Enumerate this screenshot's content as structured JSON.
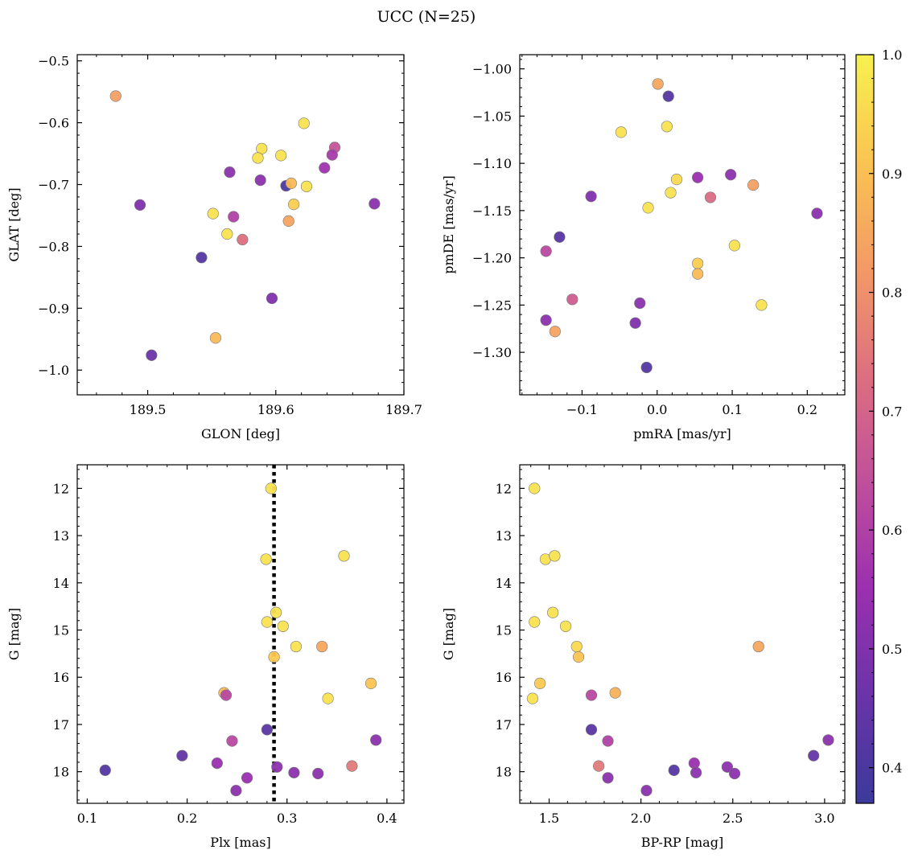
{
  "title": "UCC (N=25)",
  "colormap": {
    "name": "plasma",
    "stops": [
      "#3b3a9a",
      "#6a34a8",
      "#9b2fb0",
      "#c04f9c",
      "#dd6f80",
      "#f39a66",
      "#fbc451",
      "#f7f14f"
    ]
  },
  "colorbar": {
    "range": [
      0.37,
      1.0
    ],
    "ticks": [
      0.4,
      0.5,
      0.6,
      0.7,
      0.8,
      0.9,
      1.0
    ],
    "tick_labels": [
      "0.4",
      "0.5",
      "0.6",
      "0.7",
      "0.8",
      "0.9",
      "1.0"
    ]
  },
  "chart_data": [
    {
      "type": "scatter",
      "xlabel": "GLON [deg]",
      "ylabel": "GLAT [deg]",
      "xlim": [
        189.445,
        189.7
      ],
      "ylim": [
        -1.04,
        -0.49
      ],
      "xticks": [
        189.5,
        189.6,
        189.7
      ],
      "xtick_labels": [
        "189.5",
        "189.6",
        "189.7"
      ],
      "yticks": [
        -1.0,
        -0.9,
        -0.8,
        -0.7,
        -0.6,
        -0.5
      ],
      "ytick_labels": [
        "−1.0",
        "−0.9",
        "−0.8",
        "−0.7",
        "−0.6",
        "−0.5"
      ],
      "points": [
        {
          "x": 189.475,
          "y": -0.557,
          "c": 0.83
        },
        {
          "x": 189.622,
          "y": -0.601,
          "c": 0.97
        },
        {
          "x": 189.646,
          "y": -0.64,
          "c": 0.65
        },
        {
          "x": 189.589,
          "y": -0.642,
          "c": 0.97
        },
        {
          "x": 189.604,
          "y": -0.653,
          "c": 0.97
        },
        {
          "x": 189.644,
          "y": -0.652,
          "c": 0.58
        },
        {
          "x": 189.586,
          "y": -0.657,
          "c": 0.97
        },
        {
          "x": 189.638,
          "y": -0.673,
          "c": 0.56
        },
        {
          "x": 189.564,
          "y": -0.68,
          "c": 0.52
        },
        {
          "x": 189.588,
          "y": -0.693,
          "c": 0.52
        },
        {
          "x": 189.608,
          "y": -0.702,
          "c": 0.4
        },
        {
          "x": 189.612,
          "y": -0.698,
          "c": 0.89
        },
        {
          "x": 189.624,
          "y": -0.703,
          "c": 0.97
        },
        {
          "x": 189.494,
          "y": -0.733,
          "c": 0.5
        },
        {
          "x": 189.677,
          "y": -0.731,
          "c": 0.52
        },
        {
          "x": 189.614,
          "y": -0.732,
          "c": 0.93
        },
        {
          "x": 189.551,
          "y": -0.747,
          "c": 0.97
        },
        {
          "x": 189.567,
          "y": -0.752,
          "c": 0.6
        },
        {
          "x": 189.61,
          "y": -0.759,
          "c": 0.84
        },
        {
          "x": 189.562,
          "y": -0.78,
          "c": 0.97
        },
        {
          "x": 189.574,
          "y": -0.789,
          "c": 0.73
        },
        {
          "x": 189.542,
          "y": -0.818,
          "c": 0.42
        },
        {
          "x": 189.597,
          "y": -0.884,
          "c": 0.5
        },
        {
          "x": 189.553,
          "y": -0.948,
          "c": 0.89
        },
        {
          "x": 189.503,
          "y": -0.976,
          "c": 0.46
        }
      ]
    },
    {
      "type": "scatter",
      "xlabel": "pmRA [mas/yr]",
      "ylabel": "pmDE [mas/yr]",
      "xlim": [
        -0.183,
        0.25
      ],
      "ylim": [
        -1.345,
        -0.985
      ],
      "xticks": [
        -0.1,
        0.0,
        0.1,
        0.2
      ],
      "xtick_labels": [
        "−0.1",
        "0.0",
        "0.1",
        "0.2"
      ],
      "yticks": [
        -1.3,
        -1.25,
        -1.2,
        -1.15,
        -1.1,
        -1.05,
        -1.0
      ],
      "ytick_labels": [
        "−1.30",
        "−1.25",
        "−1.20",
        "−1.15",
        "−1.10",
        "−1.05",
        "−1.00"
      ],
      "points": [
        {
          "x": 0.001,
          "y": -1.016,
          "c": 0.85
        },
        {
          "x": 0.015,
          "y": -1.029,
          "c": 0.42
        },
        {
          "x": -0.048,
          "y": -1.067,
          "c": 0.97
        },
        {
          "x": 0.013,
          "y": -1.061,
          "c": 0.97
        },
        {
          "x": 0.054,
          "y": -1.115,
          "c": 0.55
        },
        {
          "x": 0.098,
          "y": -1.112,
          "c": 0.52
        },
        {
          "x": 0.026,
          "y": -1.117,
          "c": 0.95
        },
        {
          "x": -0.088,
          "y": -1.135,
          "c": 0.5
        },
        {
          "x": 0.071,
          "y": -1.136,
          "c": 0.72
        },
        {
          "x": 0.128,
          "y": -1.123,
          "c": 0.83
        },
        {
          "x": 0.018,
          "y": -1.131,
          "c": 0.97
        },
        {
          "x": -0.012,
          "y": -1.147,
          "c": 0.97
        },
        {
          "x": 0.213,
          "y": -1.153,
          "c": 0.52
        },
        {
          "x": -0.13,
          "y": -1.178,
          "c": 0.43
        },
        {
          "x": 0.103,
          "y": -1.187,
          "c": 0.97
        },
        {
          "x": -0.148,
          "y": -1.193,
          "c": 0.62
        },
        {
          "x": 0.054,
          "y": -1.206,
          "c": 0.93
        },
        {
          "x": 0.054,
          "y": -1.217,
          "c": 0.89
        },
        {
          "x": -0.113,
          "y": -1.244,
          "c": 0.68
        },
        {
          "x": -0.023,
          "y": -1.248,
          "c": 0.52
        },
        {
          "x": 0.139,
          "y": -1.25,
          "c": 0.97
        },
        {
          "x": -0.148,
          "y": -1.266,
          "c": 0.52
        },
        {
          "x": -0.029,
          "y": -1.269,
          "c": 0.5
        },
        {
          "x": -0.136,
          "y": -1.278,
          "c": 0.84
        },
        {
          "x": -0.014,
          "y": -1.316,
          "c": 0.42
        }
      ]
    },
    {
      "type": "scatter",
      "xlabel": "Plx [mas]",
      "ylabel": "G [mag]",
      "xlim": [
        0.09,
        0.417
      ],
      "ylim": [
        18.67,
        11.5
      ],
      "xticks": [
        0.1,
        0.2,
        0.3,
        0.4
      ],
      "xtick_labels": [
        "0.1",
        "0.2",
        "0.3",
        "0.4"
      ],
      "yticks": [
        12,
        13,
        14,
        15,
        16,
        17,
        18
      ],
      "ytick_labels": [
        "12",
        "13",
        "14",
        "15",
        "16",
        "17",
        "18"
      ],
      "vline": {
        "x": 0.287,
        "style": "dotted"
      },
      "points": [
        {
          "x": 0.284,
          "y": 12.0,
          "c": 0.97
        },
        {
          "x": 0.279,
          "y": 13.5,
          "c": 0.97
        },
        {
          "x": 0.357,
          "y": 13.43,
          "c": 0.97
        },
        {
          "x": 0.289,
          "y": 14.63,
          "c": 0.97
        },
        {
          "x": 0.28,
          "y": 14.83,
          "c": 0.97
        },
        {
          "x": 0.296,
          "y": 14.92,
          "c": 0.97
        },
        {
          "x": 0.309,
          "y": 15.35,
          "c": 0.97
        },
        {
          "x": 0.335,
          "y": 15.35,
          "c": 0.85
        },
        {
          "x": 0.287,
          "y": 15.57,
          "c": 0.92
        },
        {
          "x": 0.384,
          "y": 16.13,
          "c": 0.91
        },
        {
          "x": 0.237,
          "y": 16.33,
          "c": 0.89
        },
        {
          "x": 0.239,
          "y": 16.38,
          "c": 0.62
        },
        {
          "x": 0.341,
          "y": 16.45,
          "c": 0.97
        },
        {
          "x": 0.28,
          "y": 17.11,
          "c": 0.43
        },
        {
          "x": 0.389,
          "y": 17.33,
          "c": 0.52
        },
        {
          "x": 0.245,
          "y": 17.35,
          "c": 0.62
        },
        {
          "x": 0.195,
          "y": 17.66,
          "c": 0.45
        },
        {
          "x": 0.23,
          "y": 17.82,
          "c": 0.55
        },
        {
          "x": 0.29,
          "y": 17.9,
          "c": 0.52
        },
        {
          "x": 0.365,
          "y": 17.88,
          "c": 0.75
        },
        {
          "x": 0.118,
          "y": 17.97,
          "c": 0.42
        },
        {
          "x": 0.307,
          "y": 18.02,
          "c": 0.52
        },
        {
          "x": 0.331,
          "y": 18.04,
          "c": 0.52
        },
        {
          "x": 0.26,
          "y": 18.13,
          "c": 0.55
        },
        {
          "x": 0.249,
          "y": 18.4,
          "c": 0.52
        }
      ]
    },
    {
      "type": "scatter",
      "xlabel": "BP-RP [mag]",
      "ylabel": "G [mag]",
      "xlim": [
        1.34,
        3.11
      ],
      "ylim": [
        18.67,
        11.5
      ],
      "xticks": [
        1.5,
        2.0,
        2.5,
        3.0
      ],
      "xtick_labels": [
        "1.5",
        "2.0",
        "2.5",
        "3.0"
      ],
      "yticks": [
        12,
        13,
        14,
        15,
        16,
        17,
        18
      ],
      "ytick_labels": [
        "12",
        "13",
        "14",
        "15",
        "16",
        "17",
        "18"
      ],
      "points": [
        {
          "x": 1.42,
          "y": 12.0,
          "c": 0.97
        },
        {
          "x": 1.48,
          "y": 13.5,
          "c": 0.97
        },
        {
          "x": 1.53,
          "y": 13.43,
          "c": 0.97
        },
        {
          "x": 1.52,
          "y": 14.63,
          "c": 0.97
        },
        {
          "x": 1.42,
          "y": 14.83,
          "c": 0.97
        },
        {
          "x": 1.59,
          "y": 14.92,
          "c": 0.97
        },
        {
          "x": 1.65,
          "y": 15.35,
          "c": 0.95
        },
        {
          "x": 2.64,
          "y": 15.35,
          "c": 0.85
        },
        {
          "x": 1.66,
          "y": 15.57,
          "c": 0.91
        },
        {
          "x": 1.45,
          "y": 16.13,
          "c": 0.92
        },
        {
          "x": 1.86,
          "y": 16.33,
          "c": 0.87
        },
        {
          "x": 1.73,
          "y": 16.38,
          "c": 0.62
        },
        {
          "x": 1.41,
          "y": 16.45,
          "c": 0.97
        },
        {
          "x": 1.73,
          "y": 17.11,
          "c": 0.43
        },
        {
          "x": 3.02,
          "y": 17.33,
          "c": 0.52
        },
        {
          "x": 1.82,
          "y": 17.35,
          "c": 0.6
        },
        {
          "x": 2.94,
          "y": 17.66,
          "c": 0.45
        },
        {
          "x": 2.29,
          "y": 17.82,
          "c": 0.55
        },
        {
          "x": 1.77,
          "y": 17.88,
          "c": 0.75
        },
        {
          "x": 2.47,
          "y": 17.9,
          "c": 0.52
        },
        {
          "x": 2.18,
          "y": 17.97,
          "c": 0.42
        },
        {
          "x": 2.3,
          "y": 18.02,
          "c": 0.52
        },
        {
          "x": 2.51,
          "y": 18.04,
          "c": 0.52
        },
        {
          "x": 1.82,
          "y": 18.13,
          "c": 0.52
        },
        {
          "x": 2.03,
          "y": 18.4,
          "c": 0.52
        }
      ]
    }
  ]
}
